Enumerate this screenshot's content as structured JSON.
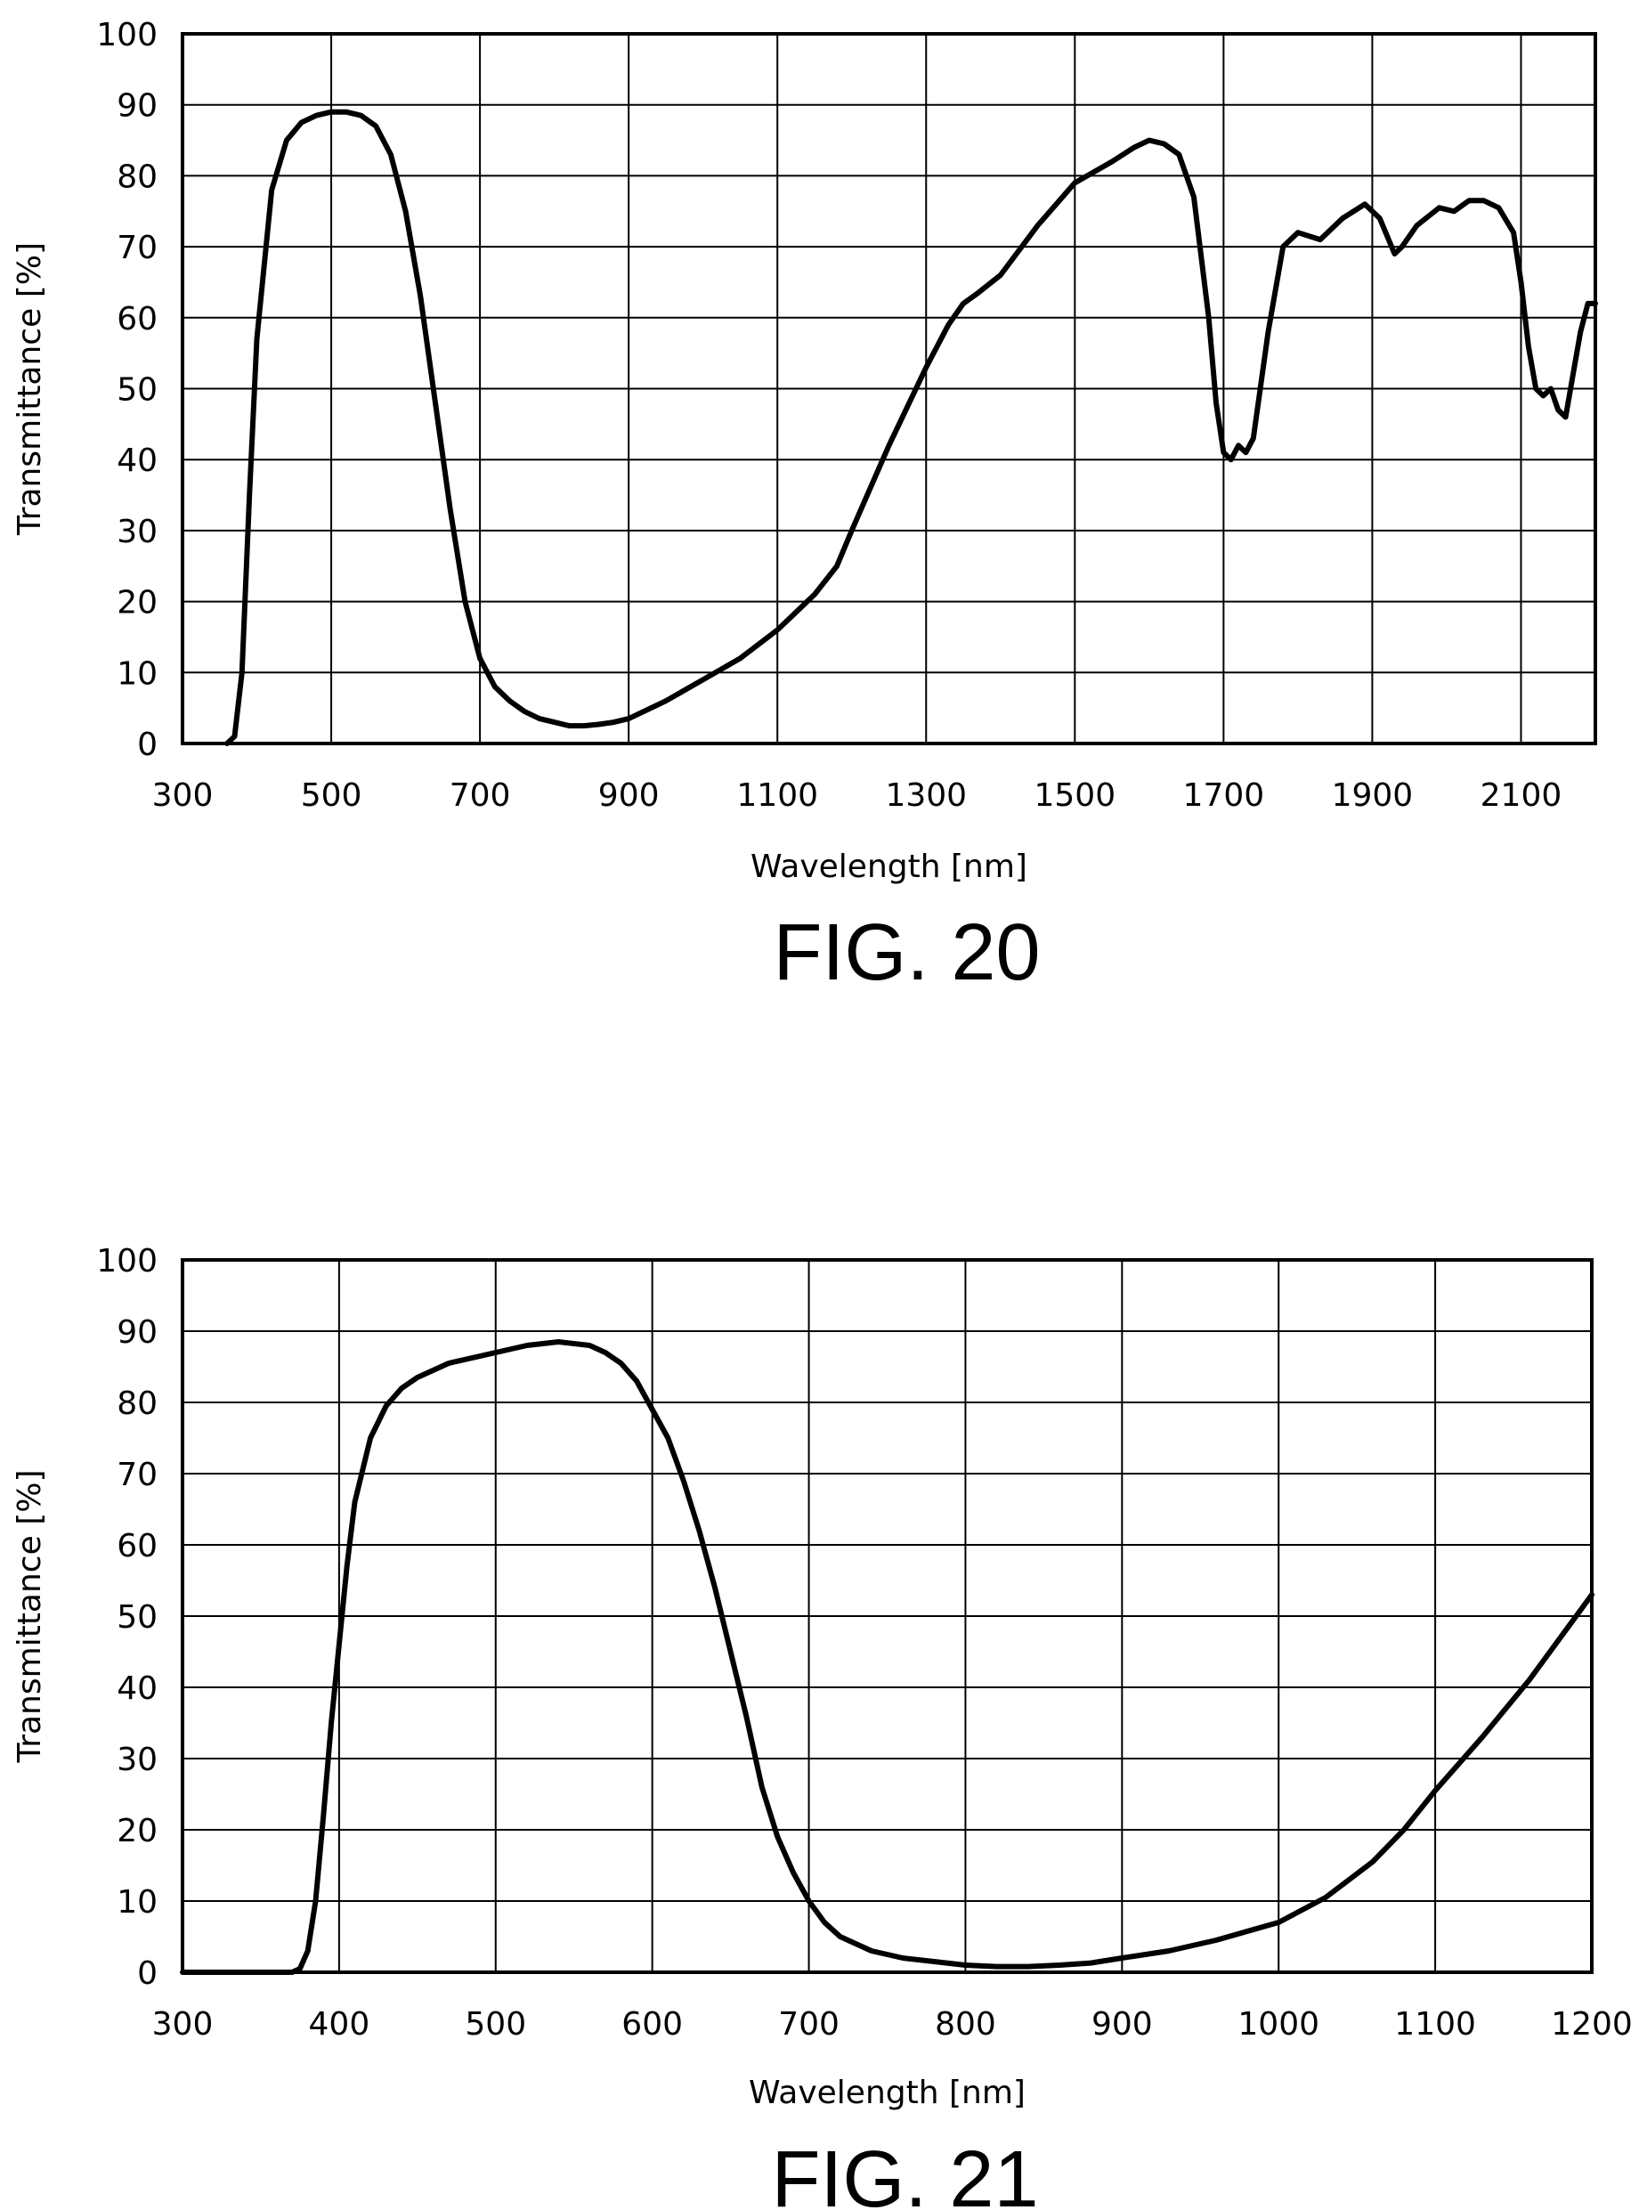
{
  "chart_data": [
    {
      "type": "line",
      "caption": "FIG. 20",
      "xlabel": "Wavelength [nm]",
      "ylabel": "Transmittance [%]",
      "xlim": [
        300,
        2200
      ],
      "ylim": [
        0,
        100
      ],
      "xticks": [
        300,
        500,
        700,
        900,
        1100,
        1300,
        1500,
        1700,
        1900,
        2100
      ],
      "xtick_labels": [
        "300",
        "500",
        "700",
        "900",
        "1100",
        "1300",
        "1500",
        "1700",
        "1900",
        "2100"
      ],
      "yticks": [
        0,
        10,
        20,
        30,
        40,
        50,
        60,
        70,
        80,
        90,
        100
      ],
      "ytick_labels": [
        "0",
        "10",
        "20",
        "30",
        "40",
        "50",
        "60",
        "70",
        "80",
        "90",
        "100"
      ],
      "grid": true,
      "series": [
        {
          "x": [
            360,
            370,
            380,
            390,
            400,
            420,
            440,
            460,
            480,
            500,
            520,
            540,
            560,
            580,
            600,
            620,
            640,
            660,
            680,
            700,
            720,
            740,
            760,
            780,
            800,
            820,
            840,
            860,
            880,
            900,
            950,
            1000,
            1050,
            1100,
            1150,
            1180,
            1200,
            1250,
            1300,
            1330,
            1350,
            1370,
            1400,
            1450,
            1500,
            1550,
            1580,
            1600,
            1620,
            1640,
            1660,
            1680,
            1690,
            1700,
            1710,
            1720,
            1730,
            1740,
            1760,
            1780,
            1800,
            1830,
            1860,
            1890,
            1910,
            1930,
            1940,
            1960,
            1990,
            2010,
            2030,
            2050,
            2070,
            2090,
            2100,
            2110,
            2120,
            2130,
            2140,
            2150,
            2160,
            2170,
            2180,
            2190,
            2200
          ],
          "y": [
            0,
            1,
            10,
            35,
            57,
            78,
            85,
            87.5,
            88.5,
            89,
            89,
            88.5,
            87,
            83,
            75,
            63,
            48,
            33,
            20,
            12,
            8,
            6,
            4.5,
            3.5,
            3,
            2.5,
            2.5,
            2.7,
            3,
            3.5,
            6,
            9,
            12,
            16,
            21,
            25,
            30,
            42,
            53,
            59,
            62,
            63.5,
            66,
            73,
            79,
            82,
            84,
            85,
            84.5,
            83,
            77,
            60,
            48,
            41,
            40,
            42,
            41,
            43,
            58,
            70,
            72,
            71,
            74,
            76,
            74,
            69,
            70,
            73,
            75.5,
            75,
            76.5,
            76.5,
            75.5,
            72,
            65,
            56,
            50,
            49,
            50,
            47,
            46,
            52,
            58,
            62,
            62
          ]
        }
      ]
    },
    {
      "type": "line",
      "caption": "FIG. 21",
      "xlabel": "Wavelength [nm]",
      "ylabel": "Transmittance [%]",
      "xlim": [
        300,
        1200
      ],
      "ylim": [
        0,
        100
      ],
      "xticks": [
        300,
        400,
        500,
        600,
        700,
        800,
        900,
        1000,
        1100,
        1200
      ],
      "xtick_labels": [
        "300",
        "400",
        "500",
        "600",
        "700",
        "800",
        "900",
        "1000",
        "1100",
        "1200"
      ],
      "yticks": [
        0,
        10,
        20,
        30,
        40,
        50,
        60,
        70,
        80,
        90,
        100
      ],
      "ytick_labels": [
        "0",
        "10",
        "20",
        "30",
        "40",
        "50",
        "60",
        "70",
        "80",
        "90",
        "100"
      ],
      "grid": true,
      "series": [
        {
          "x": [
            300,
            350,
            370,
            375,
            380,
            385,
            390,
            395,
            400,
            405,
            410,
            420,
            430,
            440,
            450,
            470,
            500,
            520,
            540,
            560,
            570,
            580,
            590,
            600,
            610,
            620,
            630,
            640,
            650,
            660,
            670,
            680,
            690,
            700,
            710,
            720,
            740,
            760,
            780,
            800,
            820,
            840,
            860,
            880,
            900,
            930,
            960,
            1000,
            1030,
            1060,
            1080,
            1100,
            1130,
            1160,
            1200
          ],
          "y": [
            0,
            0,
            0,
            0.5,
            3,
            10,
            22,
            35,
            46,
            57,
            66,
            75,
            79.5,
            82,
            83.5,
            85.5,
            87,
            88,
            88.5,
            88,
            87,
            85.5,
            83,
            79,
            75,
            69,
            62,
            54,
            45,
            36,
            26,
            19,
            14,
            10,
            7,
            5,
            3,
            2,
            1.5,
            1,
            0.8,
            0.8,
            1,
            1.3,
            2,
            3,
            4.5,
            7,
            10.5,
            15.5,
            20,
            25.5,
            33,
            41,
            53
          ]
        }
      ]
    }
  ]
}
